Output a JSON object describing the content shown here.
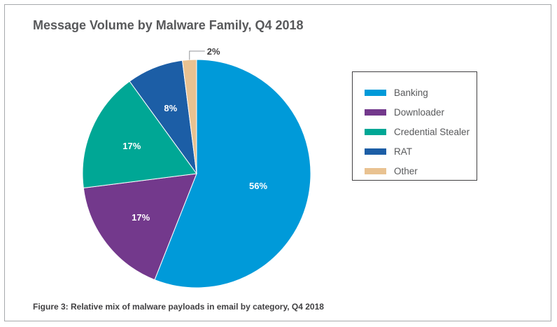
{
  "chart_data": {
    "type": "pie",
    "title": "Message Volume by Malware Family, Q4 2018",
    "caption": "Figure 3: Relative mix of malware payloads in email by category, Q4 2018",
    "categories": [
      "Banking",
      "Downloader",
      "Credential Stealer",
      "RAT",
      "Other"
    ],
    "values": [
      56,
      17,
      17,
      8,
      2
    ],
    "labels": [
      "56%",
      "17%",
      "17%",
      "8%",
      "2%"
    ],
    "colors": [
      "#009ad9",
      "#73398c",
      "#00a795",
      "#1c5ea6",
      "#e9c291"
    ],
    "legend_position": "right"
  }
}
